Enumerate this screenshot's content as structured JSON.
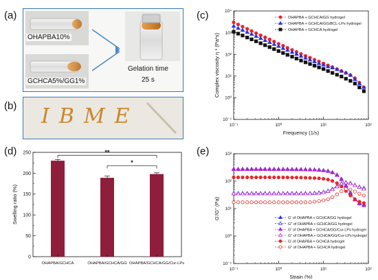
{
  "panel_labels": {
    "a": "(a)",
    "b": "(b)",
    "c": "(c)",
    "d": "(d)",
    "e": "(e)"
  },
  "photo_a": {
    "tube1_label": "OHAPBA10%",
    "tube2_label": "GCHCA5%/GG1%",
    "gelation_label": "Gelation time",
    "gelation_value": "25 s"
  },
  "photo_b": {
    "written_text": "IBME"
  },
  "chart_data": [
    {
      "panel": "c",
      "type": "line",
      "xlabel": "Frequency (1/s)",
      "ylabel": "Complex viscosity η * (Pa*s)",
      "xscale": "log",
      "yscale": "log",
      "xlim": [
        0.1,
        100
      ],
      "ylim": [
        0.1,
        10000
      ],
      "x_ticks": [
        "10⁻¹",
        "10⁰",
        "10¹",
        "10²"
      ],
      "y_ticks": [
        "10⁻¹",
        "10⁰",
        "10¹",
        "10²",
        "10³",
        "10⁴"
      ],
      "legend_position": "top-right",
      "x": [
        0.1,
        0.126,
        0.158,
        0.2,
        0.251,
        0.316,
        0.398,
        0.501,
        0.631,
        0.794,
        1,
        1.26,
        1.58,
        2,
        2.51,
        3.16,
        3.98,
        5.01,
        6.31,
        7.94,
        10,
        12.6,
        15.8,
        20,
        25.1,
        31.6,
        39.8,
        50.1,
        63.1,
        79.4
      ],
      "series": [
        {
          "name": "OHAPBA + GCHCA/GG hydrogel",
          "color": "#e8262a",
          "marker": "circle",
          "values": [
            3000,
            2400,
            1900,
            1500,
            1200,
            950,
            760,
            610,
            490,
            390,
            310,
            250,
            200,
            160,
            130,
            105,
            85,
            70,
            57,
            47,
            38,
            31,
            26,
            21,
            17,
            14,
            11,
            8,
            5,
            3
          ]
        },
        {
          "name": "OHAPBA + GCHCA/GG/BCL-LPs hydrogel",
          "color": "#2a35d6",
          "marker": "triangle",
          "values": [
            2000,
            1600,
            1300,
            1050,
            850,
            680,
            550,
            440,
            360,
            290,
            235,
            190,
            155,
            125,
            102,
            83,
            68,
            56,
            46,
            38,
            32,
            27,
            24,
            20,
            17,
            14,
            11,
            7,
            4.5,
            3
          ]
        },
        {
          "name": "OHAPBA + GCHCA hydrogel",
          "color": "#111111",
          "marker": "square",
          "values": [
            1100,
            900,
            740,
            600,
            490,
            400,
            325,
            265,
            215,
            175,
            142,
            116,
            95,
            78,
            64,
            52,
            43,
            36,
            30,
            25,
            21,
            17,
            14,
            11.5,
            9.5,
            7.5,
            6,
            4.5,
            3,
            2
          ]
        }
      ]
    },
    {
      "panel": "d",
      "type": "bar",
      "ylabel": "Swelling ratio (%)",
      "ylim": [
        0,
        250
      ],
      "y_ticks": [
        "0",
        "50",
        "100",
        "150",
        "200",
        "250"
      ],
      "categories": [
        "OHAPBA/GCHCA",
        "OHAPBA/GCHCA/GG",
        "OHAPBA/GCHCA/GG/Cur-LPs"
      ],
      "values": [
        230,
        189,
        198
      ],
      "errors": [
        3,
        4,
        3
      ],
      "bar_color": "#8f1d3c",
      "significance": [
        {
          "from": 0,
          "to": 2,
          "label": "**"
        },
        {
          "from": 1,
          "to": 2,
          "label": "*"
        }
      ]
    },
    {
      "panel": "e",
      "type": "line",
      "xlabel": "Strain (%)",
      "ylabel": "G'/G'' (Pa)",
      "xscale": "log",
      "yscale": "log",
      "xlim": [
        0.1,
        100
      ],
      "ylim": [
        0.1,
        1000
      ],
      "x_ticks": [
        "10⁻¹",
        "10⁰",
        "10¹",
        "10²"
      ],
      "y_ticks": [
        "10⁻¹",
        "10⁰",
        "10¹",
        "10²",
        "10³"
      ],
      "legend_position": "bottom-right",
      "x": [
        0.1,
        0.126,
        0.158,
        0.2,
        0.251,
        0.316,
        0.398,
        0.501,
        0.631,
        0.794,
        1,
        1.26,
        1.58,
        2,
        2.51,
        3.16,
        3.98,
        5.01,
        6.31,
        7.94,
        10,
        12.6,
        15.8,
        20,
        25.1,
        31.6,
        39.8,
        50.1,
        63.1,
        79.4
      ],
      "series": [
        {
          "name": "G' of OHAPBA + GCHCA/GG hydrogel",
          "color": "#2a35d6",
          "marker": "triangle",
          "filled": true,
          "values": [
            275,
            275,
            275,
            275,
            275,
            275,
            275,
            275,
            275,
            275,
            274,
            274,
            273,
            272,
            271,
            270,
            268,
            266,
            262,
            257,
            248,
            235,
            210,
            170,
            120,
            70,
            38,
            22,
            16,
            14
          ]
        },
        {
          "name": "G'' of OHAPBA + GCHCA/GG hydrogel",
          "color": "#2a35d6",
          "marker": "triangle",
          "filled": false,
          "values": [
            36,
            36,
            36,
            36,
            36,
            36,
            36,
            36,
            36,
            36,
            36,
            36,
            36,
            36,
            36,
            36,
            36,
            36,
            37,
            38,
            40,
            44,
            52,
            66,
            82,
            90,
            85,
            72,
            62,
            56
          ]
        },
        {
          "name": "G' of OHAPBA + GCHCA/GG/Cur-LPs hydrogel",
          "color": "#b225c9",
          "marker": "triangle",
          "filled": true,
          "values": [
            270,
            270,
            270,
            270,
            270,
            270,
            270,
            270,
            270,
            270,
            269,
            269,
            268,
            267,
            266,
            265,
            263,
            261,
            257,
            252,
            243,
            230,
            205,
            165,
            115,
            66,
            35,
            21,
            15,
            13
          ]
        },
        {
          "name": "G'' of OHAPBA + GCHCA/GG/Cur-LPs hydrogel",
          "color": "#b225c9",
          "marker": "triangle",
          "filled": false,
          "values": [
            35,
            35,
            35,
            35,
            35,
            35,
            35,
            35,
            35,
            35,
            35,
            35,
            35,
            35,
            35,
            35,
            35,
            35,
            36,
            37,
            39,
            43,
            50,
            63,
            80,
            88,
            82,
            70,
            60,
            52
          ]
        },
        {
          "name": "G' of OHAPBA + GCHCA hydrogel",
          "color": "#e8262a",
          "marker": "circle",
          "filled": true,
          "values": [
            138,
            138,
            138,
            138,
            138,
            138,
            138,
            138,
            138,
            138,
            137,
            137,
            137,
            136,
            136,
            135,
            134,
            132,
            130,
            127,
            122,
            115,
            102,
            85,
            64,
            44,
            30,
            22,
            18,
            16
          ]
        },
        {
          "name": "G'' of OHAPBA + GCHCA hydrogel",
          "color": "#e8262a",
          "marker": "circle",
          "filled": false,
          "values": [
            17,
            17,
            17,
            17,
            17,
            17,
            17,
            17,
            17,
            17,
            17,
            17,
            17,
            17,
            17,
            17,
            17,
            17,
            18,
            19,
            20,
            22,
            26,
            33,
            43,
            52,
            50,
            42,
            35,
            30
          ]
        }
      ]
    }
  ]
}
